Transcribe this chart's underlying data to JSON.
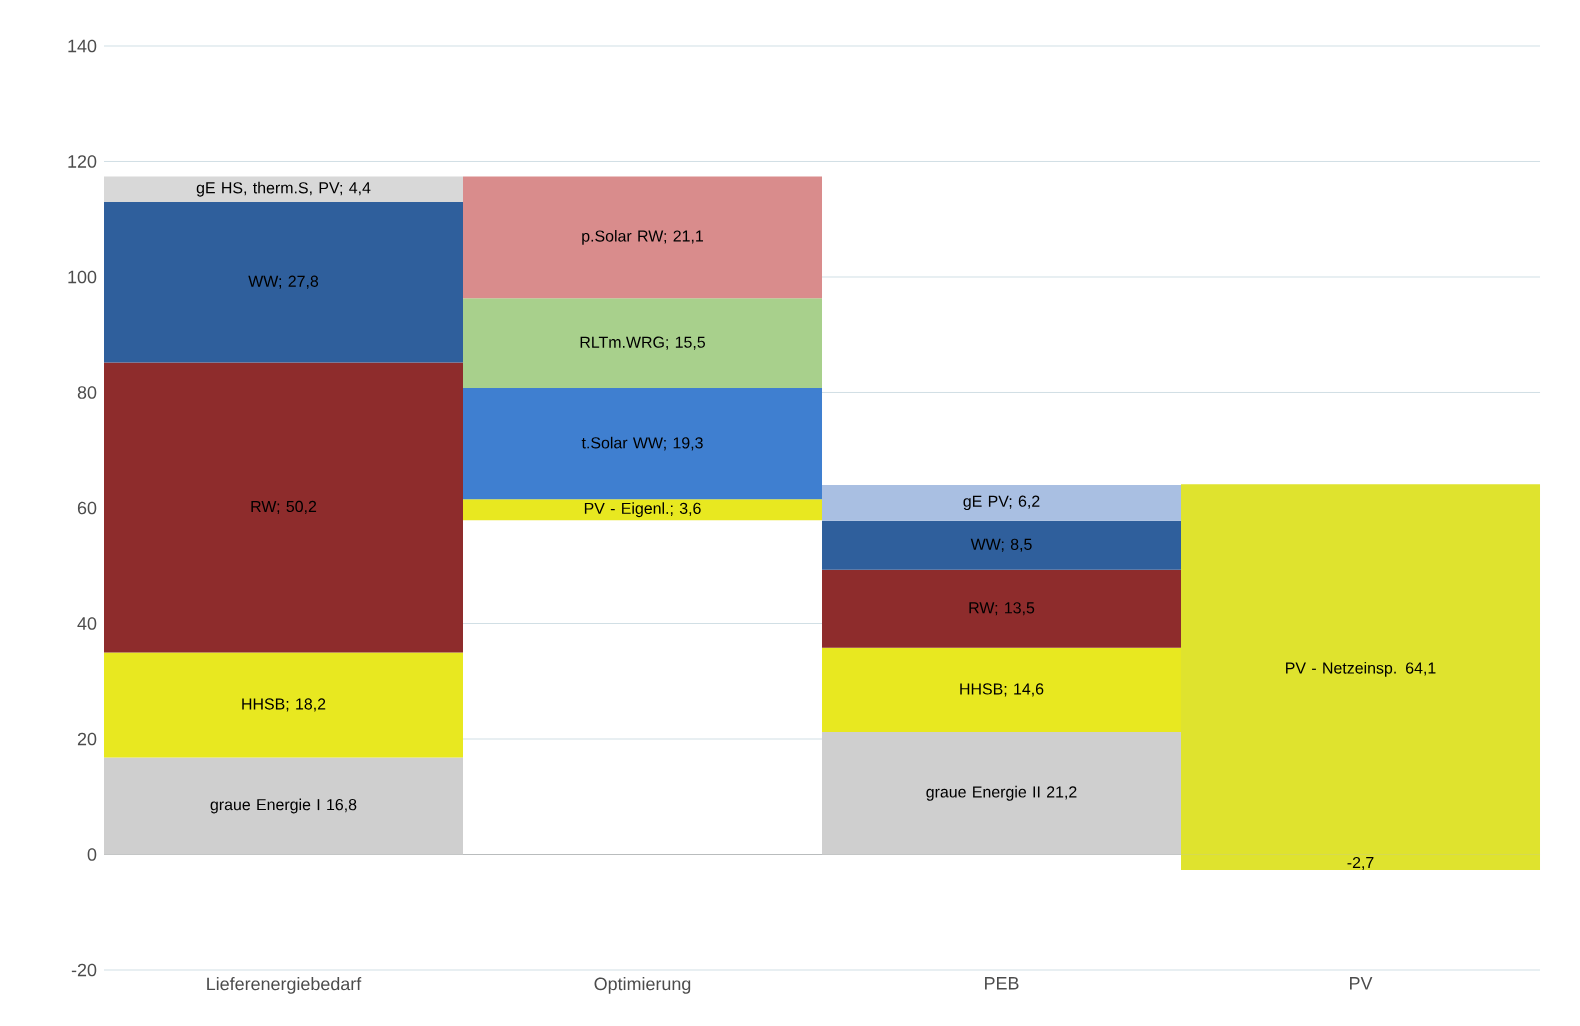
{
  "chart_data": {
    "type": "bar",
    "categories": [
      "Lieferenergiebedarf",
      "Optimierung",
      "PEB",
      "PV"
    ],
    "series": [
      {
        "colors": [
          "#cfcfcf",
          "#e8e820",
          "#cfcfcf",
          "#dfe32e"
        ],
        "base": [
          0,
          57.9,
          0,
          0
        ],
        "values": [
          16.8,
          3.6,
          21.2,
          64.1
        ],
        "value_labels": [
          "graue Energie I 16,8",
          "PV - Eigenl.; 3,6",
          "graue Energie II 21,2",
          "PV - Netzeinsp. 64,1"
        ]
      },
      {
        "colors": [
          "#e8e820",
          "#3f7fd0",
          "#e8e820",
          "#dfe32e"
        ],
        "base": [
          16.8,
          61.5,
          21.2,
          0
        ],
        "values": [
          18.2,
          19.3,
          14.6,
          -2.7
        ],
        "value_labels": [
          "HHSB; 18,2",
          "t.Solar WW; 19,3",
          "HHSB; 14,6",
          "-2,7"
        ]
      },
      {
        "colors": [
          "#8e2c2c",
          "#a8d08c",
          "#8e2c2c",
          null
        ],
        "base": [
          35.0,
          80.8,
          35.8,
          null
        ],
        "values": [
          50.2,
          15.5,
          13.5,
          null
        ],
        "value_labels": [
          "RW; 50,2",
          "RLTm.WRG; 15,5",
          "RW; 13,5",
          null
        ]
      },
      {
        "colors": [
          "#2f5f9c",
          "#d98c8c",
          "#2f5f9c",
          null
        ],
        "base": [
          85.2,
          96.3,
          49.3,
          null
        ],
        "values": [
          27.8,
          21.1,
          8.5,
          null
        ],
        "value_labels": [
          "WW; 27,8",
          "p.Solar RW; 21,1",
          "WW; 8,5",
          null
        ]
      },
      {
        "colors": [
          "#d8d8d8",
          null,
          "#a9bfe2",
          null
        ],
        "base": [
          113.0,
          null,
          57.8,
          null
        ],
        "values": [
          4.4,
          null,
          6.2,
          null
        ],
        "value_labels": [
          "gE HS, therm.S, PV; 4,4",
          null,
          "gE PV; 6,2",
          null
        ]
      }
    ],
    "ylim": [
      -20,
      140
    ],
    "yticks": [
      -20,
      0,
      20,
      40,
      60,
      80,
      100,
      120,
      140
    ],
    "grid": "y"
  }
}
